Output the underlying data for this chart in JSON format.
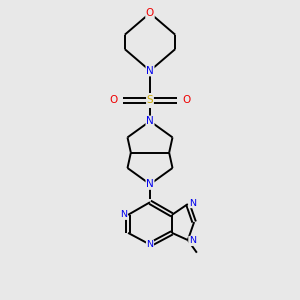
{
  "bg_color": "#e8e8e8",
  "atom_colors": {
    "C": "#000000",
    "N": "#0000ee",
    "O": "#ee0000",
    "S": "#ccaa00"
  },
  "line_color": "#000000",
  "line_width": 1.4,
  "figsize": [
    3.0,
    3.0
  ],
  "dpi": 100,
  "xlim": [
    -0.75,
    0.75
  ],
  "ylim": [
    -0.55,
    2.75
  ]
}
